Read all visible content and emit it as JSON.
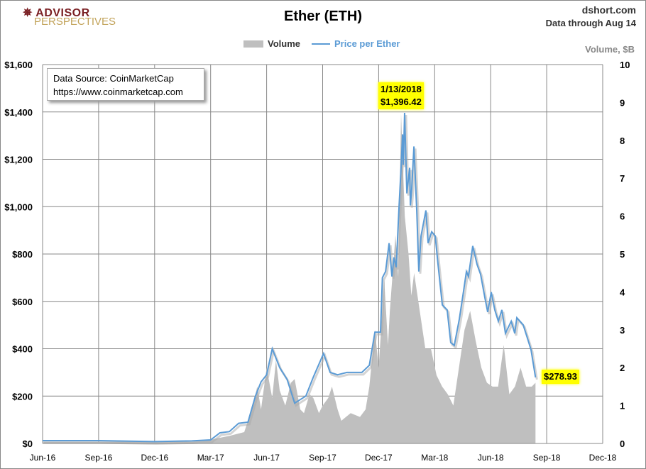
{
  "header": {
    "title": "Ether (ETH)",
    "site": "dshort.com",
    "data_through": "Data through Aug 14",
    "logo_line1": "ADVISOR",
    "logo_line2": "PERSPECTIVES"
  },
  "source_box": {
    "line1": "Data Source: CoinMarketCap",
    "line2": "https://www.coinmarketcap.com"
  },
  "chart_data": {
    "type": "line",
    "title": "Ether (ETH)",
    "legend": [
      {
        "name": "Volume",
        "color": "#bfbfbf"
      },
      {
        "name": "Price per Ether",
        "color": "#5b9bd5"
      }
    ],
    "legend_placement": "top-center",
    "left_axis": {
      "ylim": [
        0,
        1600
      ],
      "ticks": [
        "$0",
        "$200",
        "$400",
        "$600",
        "$800",
        "$1,000",
        "$1,200",
        "$1,400",
        "$1,600"
      ]
    },
    "right_axis": {
      "label": "Volume, $B",
      "ylim": [
        0,
        10
      ],
      "ticks": [
        "0",
        "1",
        "2",
        "3",
        "4",
        "5",
        "6",
        "7",
        "8",
        "9",
        "10"
      ]
    },
    "x_axis": {
      "unit": "months since Jun-16",
      "xlim": [
        0,
        30
      ],
      "ticks": [
        "Jun-16",
        "Sep-16",
        "Dec-16",
        "Mar-17",
        "Jun-17",
        "Sep-17",
        "Dec-17",
        "Mar-18",
        "Jun-18",
        "Sep-18",
        "Dec-18"
      ]
    },
    "grid": true,
    "annotations": [
      {
        "line1": "1/13/2018",
        "line2": "$1,396.42",
        "x": 19.39,
        "y": 1396.42
      },
      {
        "line1": "$278.93",
        "x": 26.4,
        "y": 278.93
      }
    ],
    "price": [
      [
        0,
        12
      ],
      [
        3,
        12
      ],
      [
        6,
        8
      ],
      [
        8,
        11
      ],
      [
        9,
        15
      ],
      [
        9.5,
        45
      ],
      [
        10,
        50
      ],
      [
        10.5,
        85
      ],
      [
        11,
        90
      ],
      [
        11.4,
        200
      ],
      [
        11.7,
        260
      ],
      [
        12,
        290
      ],
      [
        12.3,
        400
      ],
      [
        12.7,
        320
      ],
      [
        13.1,
        270
      ],
      [
        13.5,
        170
      ],
      [
        14.1,
        200
      ],
      [
        14.5,
        280
      ],
      [
        15.05,
        380
      ],
      [
        15.4,
        300
      ],
      [
        15.8,
        290
      ],
      [
        16.3,
        300
      ],
      [
        17.1,
        300
      ],
      [
        17.5,
        330
      ],
      [
        17.8,
        470
      ],
      [
        18.1,
        470
      ],
      [
        18.2,
        700
      ],
      [
        18.37,
        726
      ],
      [
        18.56,
        846
      ],
      [
        18.71,
        705
      ],
      [
        18.82,
        786
      ],
      [
        18.94,
        744
      ],
      [
        19.09,
        996
      ],
      [
        19.2,
        1164
      ],
      [
        19.28,
        1305
      ],
      [
        19.32,
        1176
      ],
      [
        19.39,
        1396
      ],
      [
        19.51,
        1056
      ],
      [
        19.66,
        1164
      ],
      [
        19.7,
        1005
      ],
      [
        19.77,
        1074
      ],
      [
        19.89,
        1254
      ],
      [
        20.04,
        984
      ],
      [
        20.15,
        726
      ],
      [
        20.27,
        876
      ],
      [
        20.53,
        984
      ],
      [
        20.65,
        846
      ],
      [
        20.84,
        894
      ],
      [
        21.03,
        876
      ],
      [
        21.18,
        756
      ],
      [
        21.41,
        585
      ],
      [
        21.67,
        564
      ],
      [
        21.86,
        426
      ],
      [
        22.05,
        414
      ],
      [
        22.32,
        525
      ],
      [
        22.55,
        645
      ],
      [
        22.7,
        726
      ],
      [
        22.81,
        705
      ],
      [
        23.04,
        834
      ],
      [
        23.27,
        756
      ],
      [
        23.46,
        714
      ],
      [
        23.69,
        615
      ],
      [
        23.84,
        555
      ],
      [
        24.03,
        639
      ],
      [
        24.22,
        564
      ],
      [
        24.41,
        516
      ],
      [
        24.6,
        564
      ],
      [
        24.79,
        465
      ],
      [
        25.1,
        516
      ],
      [
        25.29,
        465
      ],
      [
        25.4,
        531
      ],
      [
        25.74,
        501
      ],
      [
        25.97,
        444
      ],
      [
        26.16,
        396
      ],
      [
        26.4,
        279
      ]
    ],
    "volume": [
      [
        0,
        0.05
      ],
      [
        8,
        0.05
      ],
      [
        9,
        0.1
      ],
      [
        10,
        0.2
      ],
      [
        10.8,
        0.3
      ],
      [
        11.2,
        0.9
      ],
      [
        11.5,
        1.5
      ],
      [
        11.7,
        0.9
      ],
      [
        12,
        2.0
      ],
      [
        12.3,
        1.2
      ],
      [
        12.5,
        2.2
      ],
      [
        12.7,
        1.4
      ],
      [
        13,
        1.0
      ],
      [
        13.3,
        1.6
      ],
      [
        13.5,
        1.7
      ],
      [
        13.8,
        0.9
      ],
      [
        14,
        0.8
      ],
      [
        14.3,
        1.3
      ],
      [
        14.5,
        1.2
      ],
      [
        14.8,
        0.8
      ],
      [
        15,
        1.0
      ],
      [
        15.3,
        1.2
      ],
      [
        15.5,
        1.5
      ],
      [
        15.8,
        0.9
      ],
      [
        16,
        0.6
      ],
      [
        16.5,
        0.8
      ],
      [
        17,
        0.7
      ],
      [
        17.3,
        0.9
      ],
      [
        17.5,
        1.5
      ],
      [
        17.8,
        3.0
      ],
      [
        18,
        2.0
      ],
      [
        18.3,
        4.3
      ],
      [
        18.5,
        2.6
      ],
      [
        18.6,
        3.5
      ],
      [
        18.9,
        5.5
      ],
      [
        19.05,
        4.4
      ],
      [
        19.2,
        8.7
      ],
      [
        19.4,
        6.0
      ],
      [
        19.6,
        5.0
      ],
      [
        19.75,
        3.9
      ],
      [
        19.9,
        4.5
      ],
      [
        20.2,
        3.5
      ],
      [
        20.5,
        2.5
      ],
      [
        20.8,
        2.5
      ],
      [
        21.1,
        1.8
      ],
      [
        21.4,
        1.5
      ],
      [
        21.7,
        1.3
      ],
      [
        22,
        1.0
      ],
      [
        22.3,
        2.0
      ],
      [
        22.6,
        3.0
      ],
      [
        22.9,
        3.5
      ],
      [
        23.2,
        2.7
      ],
      [
        23.5,
        2.0
      ],
      [
        23.8,
        1.6
      ],
      [
        24.1,
        1.5
      ],
      [
        24.4,
        1.5
      ],
      [
        24.7,
        2.6
      ],
      [
        25,
        1.3
      ],
      [
        25.3,
        1.5
      ],
      [
        25.6,
        2.0
      ],
      [
        25.9,
        1.5
      ],
      [
        26.2,
        1.5
      ],
      [
        26.4,
        1.6
      ]
    ]
  }
}
